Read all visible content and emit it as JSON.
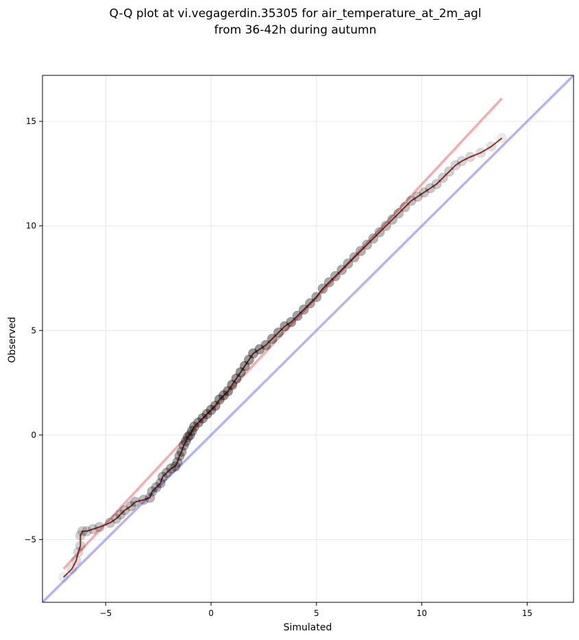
{
  "chart_data": {
    "type": "scatter",
    "title": "Q-Q plot at vi.vegagerdin.35305 for air_temperature_at_2m_agl",
    "subtitle": "from 36-42h during autumn",
    "xlabel": "Simulated",
    "ylabel": "Observed",
    "xlim": [
      -8.0,
      17.2
    ],
    "ylim": [
      -8.0,
      17.2
    ],
    "xticks": [
      -5,
      0,
      5,
      10,
      15
    ],
    "yticks": [
      -5,
      0,
      5,
      10,
      15
    ],
    "xtick_labels": [
      "−5",
      "0",
      "5",
      "10",
      "15"
    ],
    "ytick_labels": [
      "−5",
      "0",
      "5",
      "10",
      "15"
    ],
    "grid": true,
    "colors": {
      "points": "#000000",
      "fit_line": "#f08080",
      "identity_line": "#8080ee",
      "dense_trace": "#8b0000"
    },
    "fit_line": {
      "x": [
        -7.0,
        13.8
      ],
      "y": [
        -6.4,
        16.1
      ]
    },
    "identity_line": {
      "x": [
        -8.0,
        17.2
      ],
      "y": [
        -8.0,
        17.2
      ]
    },
    "quantiles": {
      "x": [
        -7.0,
        -6.6,
        -6.4,
        -6.3,
        -6.2,
        -6.2,
        -6.1,
        -5.9,
        -5.6,
        -5.3,
        -4.8,
        -4.5,
        -4.3,
        -4.1,
        -3.8,
        -3.6,
        -3.2,
        -2.9,
        -2.8,
        -2.6,
        -2.4,
        -2.3,
        -2.1,
        -1.9,
        -1.7,
        -1.6,
        -1.5,
        -1.4,
        -1.3,
        -1.2,
        -1.1,
        -1.0,
        -0.9,
        -0.8,
        -0.6,
        -0.4,
        -0.2,
        0.0,
        0.2,
        0.4,
        0.6,
        0.8,
        1.0,
        1.2,
        1.4,
        1.6,
        1.8,
        2.0,
        2.3,
        2.6,
        2.9,
        3.2,
        3.5,
        3.8,
        4.1,
        4.4,
        4.7,
        5.0,
        5.3,
        5.6,
        5.9,
        6.2,
        6.5,
        6.8,
        7.1,
        7.4,
        7.7,
        8.0,
        8.3,
        8.6,
        8.9,
        9.2,
        9.5,
        9.8,
        10.1,
        10.4,
        10.7,
        11.0,
        11.3,
        11.6,
        11.9,
        12.3,
        12.8,
        13.3,
        13.8
      ],
      "y": [
        -6.8,
        -6.4,
        -6.0,
        -5.6,
        -5.3,
        -4.8,
        -4.6,
        -4.6,
        -4.5,
        -4.4,
        -4.2,
        -4.0,
        -3.8,
        -3.6,
        -3.4,
        -3.2,
        -3.1,
        -3.0,
        -2.7,
        -2.5,
        -2.3,
        -2.0,
        -1.8,
        -1.6,
        -1.5,
        -1.3,
        -1.0,
        -0.8,
        -0.5,
        -0.3,
        -0.1,
        0.0,
        0.2,
        0.4,
        0.6,
        0.8,
        1.0,
        1.2,
        1.4,
        1.7,
        1.9,
        2.1,
        2.4,
        2.7,
        3.0,
        3.3,
        3.6,
        3.9,
        4.1,
        4.3,
        4.6,
        4.9,
        5.2,
        5.4,
        5.7,
        6.0,
        6.3,
        6.6,
        7.0,
        7.3,
        7.6,
        7.9,
        8.2,
        8.5,
        8.8,
        9.1,
        9.4,
        9.7,
        10.0,
        10.3,
        10.6,
        10.9,
        11.2,
        11.4,
        11.6,
        11.8,
        12.0,
        12.3,
        12.6,
        12.9,
        13.1,
        13.3,
        13.5,
        13.8,
        14.2
      ]
    }
  }
}
